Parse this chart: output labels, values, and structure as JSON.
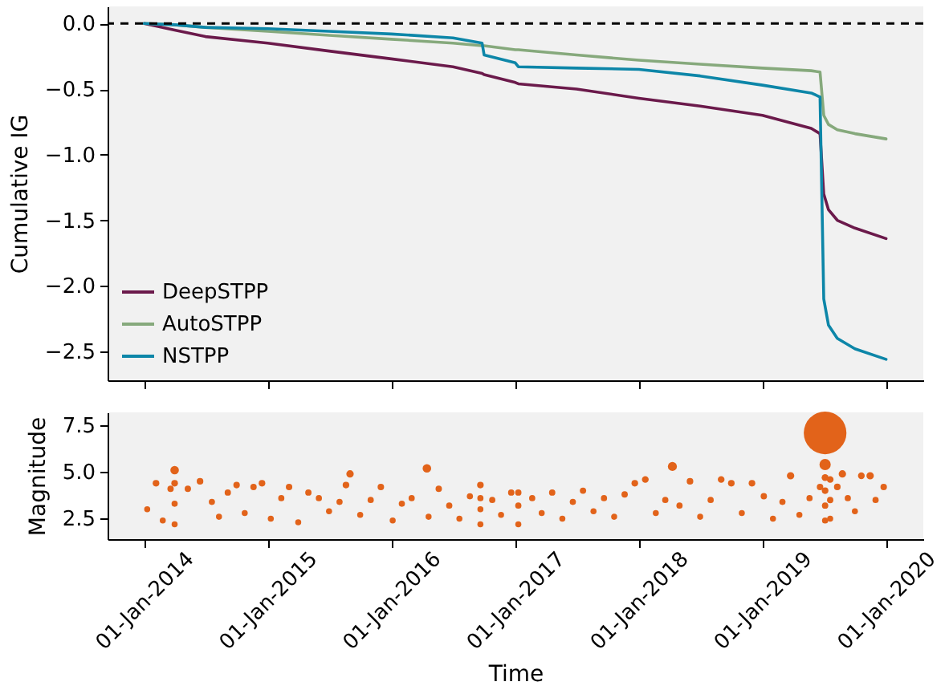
{
  "chart_data": [
    {
      "type": "line",
      "ylabel": "Cumulative IG",
      "legend": "bottom left",
      "grid": false,
      "marker": "none",
      "line_style": "solid",
      "tick_labels": "y",
      "xlim": [
        "2013-09-15",
        "2020-04-20"
      ],
      "xticks": [
        {
          "value": "2014-01-01",
          "label": null
        },
        {
          "value": "2015-01-01",
          "label": null
        },
        {
          "value": "2016-01-01",
          "label": null
        },
        {
          "value": "2017-01-01",
          "label": null
        },
        {
          "value": "2018-01-01",
          "label": null
        },
        {
          "value": "2019-01-01",
          "label": null
        },
        {
          "value": "2020-01-01",
          "label": null
        }
      ],
      "ylim": [
        -2.72,
        0.13
      ],
      "yticks": [
        {
          "value": 0,
          "label": "0.0"
        },
        {
          "value": -0.5,
          "label": "−0.5"
        },
        {
          "value": -1,
          "label": "−1.0"
        },
        {
          "value": -1.5,
          "label": "−1.5"
        },
        {
          "value": -2,
          "label": "−2.0"
        },
        {
          "value": -2.5,
          "label": "−2.5"
        }
      ],
      "ref_lines": [
        {
          "axis": "y",
          "value": 0,
          "color": "#000000",
          "line_style": "dashed"
        }
      ],
      "x": [
        "2014-01-01",
        "2014-04-01",
        "2014-07-01",
        "2015-01-01",
        "2015-07-01",
        "2016-01-01",
        "2016-07-01",
        "2016-09-25",
        "2016-10-01",
        "2017-01-01",
        "2017-01-10",
        "2017-07-01",
        "2018-01-01",
        "2018-07-01",
        "2019-01-01",
        "2019-05-25",
        "2019-06-20",
        "2019-07-01",
        "2019-07-15",
        "2019-08-10",
        "2019-10-01",
        "2020-01-01"
      ],
      "series": [
        {
          "name": "DeepSTPP",
          "color": "#6b1a4b",
          "values": [
            0,
            -0.05,
            -0.1,
            -0.15,
            -0.21,
            -0.27,
            -0.33,
            -0.38,
            -0.39,
            -0.45,
            -0.46,
            -0.5,
            -0.57,
            -0.63,
            -0.7,
            -0.8,
            -0.84,
            -1.3,
            -1.42,
            -1.5,
            -1.56,
            -1.64
          ]
        },
        {
          "name": "AutoSTPP",
          "color": "#86a97c",
          "values": [
            0,
            -0.01,
            -0.03,
            -0.06,
            -0.09,
            -0.12,
            -0.15,
            -0.17,
            -0.17,
            -0.2,
            -0.2,
            -0.24,
            -0.28,
            -0.31,
            -0.34,
            -0.36,
            -0.37,
            -0.7,
            -0.77,
            -0.81,
            -0.84,
            -0.88
          ]
        },
        {
          "name": "NSTPP",
          "color": "#0d86a8",
          "values": [
            0,
            -0.01,
            -0.03,
            -0.04,
            -0.06,
            -0.08,
            -0.11,
            -0.15,
            -0.24,
            -0.3,
            -0.33,
            -0.34,
            -0.35,
            -0.4,
            -0.47,
            -0.53,
            -0.56,
            -2.1,
            -2.3,
            -2.4,
            -2.48,
            -2.56
          ]
        }
      ]
    },
    {
      "type": "bubble",
      "xlabel": "Time",
      "ylabel": "Magnitude",
      "grid": false,
      "color": "#e2631a",
      "xlim": [
        "2013-09-15",
        "2020-04-20"
      ],
      "xticks": [
        {
          "value": "2014-01-01",
          "label": "01-Jan-2014"
        },
        {
          "value": "2015-01-01",
          "label": "01-Jan-2015"
        },
        {
          "value": "2016-01-01",
          "label": "01-Jan-2016"
        },
        {
          "value": "2017-01-01",
          "label": "01-Jan-2017"
        },
        {
          "value": "2018-01-01",
          "label": "01-Jan-2018"
        },
        {
          "value": "2019-01-01",
          "label": "01-Jan-2019"
        },
        {
          "value": "2020-01-01",
          "label": "01-Jan-2020"
        }
      ],
      "ylim": [
        1.4,
        8.2
      ],
      "yticks": [
        {
          "value": 2.5,
          "label": "2.5"
        },
        {
          "value": 5,
          "label": "5.0"
        },
        {
          "value": 7.5,
          "label": "7.5"
        }
      ],
      "x": [
        "2014-01-10",
        "2014-02-05",
        "2014-02-25",
        "2014-03-20",
        "2014-04-01",
        "2014-04-01",
        "2014-04-01",
        "2014-04-01",
        "2014-05-10",
        "2014-06-15",
        "2014-07-20",
        "2014-08-10",
        "2014-09-05",
        "2014-10-01",
        "2014-10-25",
        "2014-11-20",
        "2014-12-15",
        "2015-01-10",
        "2015-02-10",
        "2015-03-05",
        "2015-04-01",
        "2015-05-01",
        "2015-06-01",
        "2015-07-01",
        "2015-08-01",
        "2015-08-20",
        "2015-09-01",
        "2015-10-01",
        "2015-11-01",
        "2015-12-01",
        "2016-01-05",
        "2016-02-01",
        "2016-03-01",
        "2016-04-15",
        "2016-04-20",
        "2016-05-20",
        "2016-06-20",
        "2016-07-20",
        "2016-08-20",
        "2016-09-20",
        "2016-09-20",
        "2016-09-20",
        "2016-09-20",
        "2016-10-25",
        "2016-11-20",
        "2016-12-20",
        "2017-01-10",
        "2017-01-10",
        "2017-01-10",
        "2017-02-20",
        "2017-03-20",
        "2017-04-20",
        "2017-05-20",
        "2017-06-20",
        "2017-07-20",
        "2017-08-20",
        "2017-09-20",
        "2017-10-20",
        "2017-11-20",
        "2017-12-20",
        "2018-01-20",
        "2018-02-20",
        "2018-03-20",
        "2018-04-10",
        "2018-05-01",
        "2018-06-01",
        "2018-07-01",
        "2018-08-01",
        "2018-09-01",
        "2018-10-01",
        "2018-11-01",
        "2018-12-01",
        "2019-01-05",
        "2019-02-01",
        "2019-03-01",
        "2019-03-25",
        "2019-04-20",
        "2019-05-20",
        "2019-06-20",
        "2019-07-05",
        "2019-07-05",
        "2019-07-05",
        "2019-07-05",
        "2019-07-05",
        "2019-07-05",
        "2019-07-20",
        "2019-07-20",
        "2019-07-20",
        "2019-08-10",
        "2019-08-25",
        "2019-09-10",
        "2019-10-01",
        "2019-10-20",
        "2019-11-15",
        "2019-12-01",
        "2019-12-25"
      ],
      "values": [
        3.0,
        4.4,
        2.4,
        4.1,
        5.1,
        4.4,
        3.3,
        2.2,
        4.1,
        4.5,
        3.4,
        2.6,
        3.9,
        4.3,
        2.8,
        4.2,
        4.4,
        2.5,
        3.6,
        4.2,
        2.3,
        3.9,
        3.6,
        2.9,
        3.4,
        4.3,
        4.9,
        2.7,
        3.5,
        4.2,
        2.4,
        3.3,
        3.6,
        5.2,
        2.6,
        4.1,
        3.2,
        2.5,
        3.7,
        4.3,
        3.6,
        3.0,
        2.2,
        3.5,
        2.7,
        3.9,
        3.9,
        3.2,
        2.2,
        3.6,
        2.8,
        3.9,
        2.5,
        3.4,
        4.0,
        2.9,
        3.6,
        2.6,
        3.8,
        4.4,
        4.6,
        2.8,
        3.5,
        5.3,
        3.2,
        4.5,
        2.6,
        3.5,
        4.6,
        4.4,
        2.8,
        4.4,
        3.7,
        2.5,
        3.4,
        4.8,
        2.7,
        3.6,
        4.2,
        7.1,
        5.4,
        4.7,
        4.0,
        3.2,
        2.4,
        4.6,
        3.5,
        2.5,
        4.2,
        4.9,
        3.6,
        2.9,
        4.8,
        4.8,
        3.5,
        4.2
      ],
      "sizes": [
        0.02,
        0.024,
        0.02,
        0.022,
        0.04,
        0.024,
        0.021,
        0.02,
        0.022,
        0.024,
        0.021,
        0.02,
        0.022,
        0.023,
        0.02,
        0.022,
        0.024,
        0.02,
        0.021,
        0.023,
        0.02,
        0.022,
        0.021,
        0.02,
        0.021,
        0.024,
        0.03,
        0.02,
        0.021,
        0.023,
        0.02,
        0.021,
        0.021,
        0.04,
        0.02,
        0.022,
        0.021,
        0.02,
        0.021,
        0.024,
        0.021,
        0.02,
        0.02,
        0.021,
        0.02,
        0.022,
        0.022,
        0.021,
        0.02,
        0.021,
        0.02,
        0.022,
        0.02,
        0.021,
        0.022,
        0.02,
        0.021,
        0.02,
        0.022,
        0.024,
        0.025,
        0.02,
        0.021,
        0.045,
        0.021,
        0.024,
        0.02,
        0.021,
        0.025,
        0.024,
        0.02,
        0.024,
        0.022,
        0.02,
        0.021,
        0.03,
        0.02,
        0.021,
        0.023,
        1,
        0.07,
        0.026,
        0.024,
        0.022,
        0.021,
        0.025,
        0.022,
        0.02,
        0.024,
        0.03,
        0.021,
        0.02,
        0.025,
        0.03,
        0.021,
        0.023
      ]
    }
  ]
}
